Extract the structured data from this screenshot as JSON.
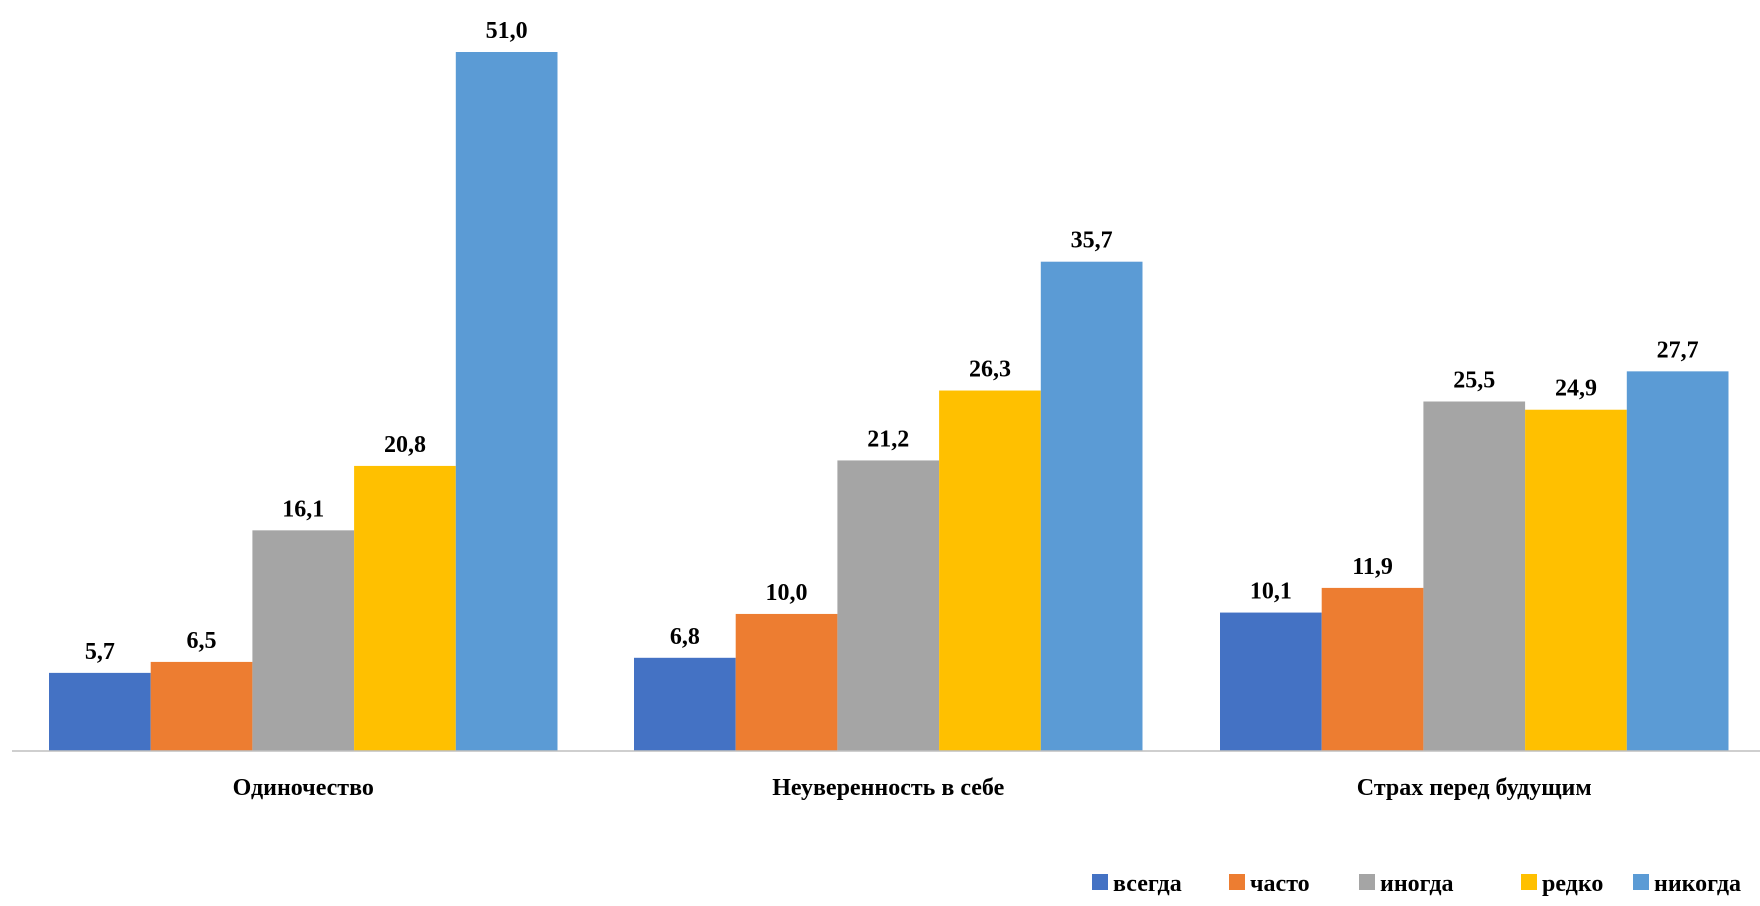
{
  "chart_data": {
    "type": "bar",
    "categories": [
      "Одиночество",
      "Неуверенность в себе",
      "Страх перед будущим"
    ],
    "series": [
      {
        "name": "всегда",
        "color": "#4472C4",
        "values": [
          5.7,
          6.8,
          10.1
        ],
        "labels": [
          "5,7",
          "6,8",
          "10,1"
        ]
      },
      {
        "name": "часто",
        "color": "#ED7D31",
        "values": [
          6.5,
          10.0,
          11.9
        ],
        "labels": [
          "6,5",
          "10,0",
          "11,9"
        ]
      },
      {
        "name": "иногда",
        "color": "#A5A5A5",
        "values": [
          16.1,
          21.2,
          25.5
        ],
        "labels": [
          "16,1",
          "21,2",
          "25,5"
        ]
      },
      {
        "name": "редко",
        "color": "#FFC000",
        "values": [
          20.8,
          26.3,
          24.9
        ],
        "labels": [
          "20,8",
          "26,3",
          "24,9"
        ]
      },
      {
        "name": "никогда",
        "color": "#5B9BD5",
        "values": [
          51.0,
          35.7,
          27.7
        ],
        "labels": [
          "51,0",
          "35,7",
          "27,7"
        ]
      }
    ],
    "ylim": [
      0,
      51.0
    ],
    "grid": false,
    "legend_position": "bottom-right"
  }
}
